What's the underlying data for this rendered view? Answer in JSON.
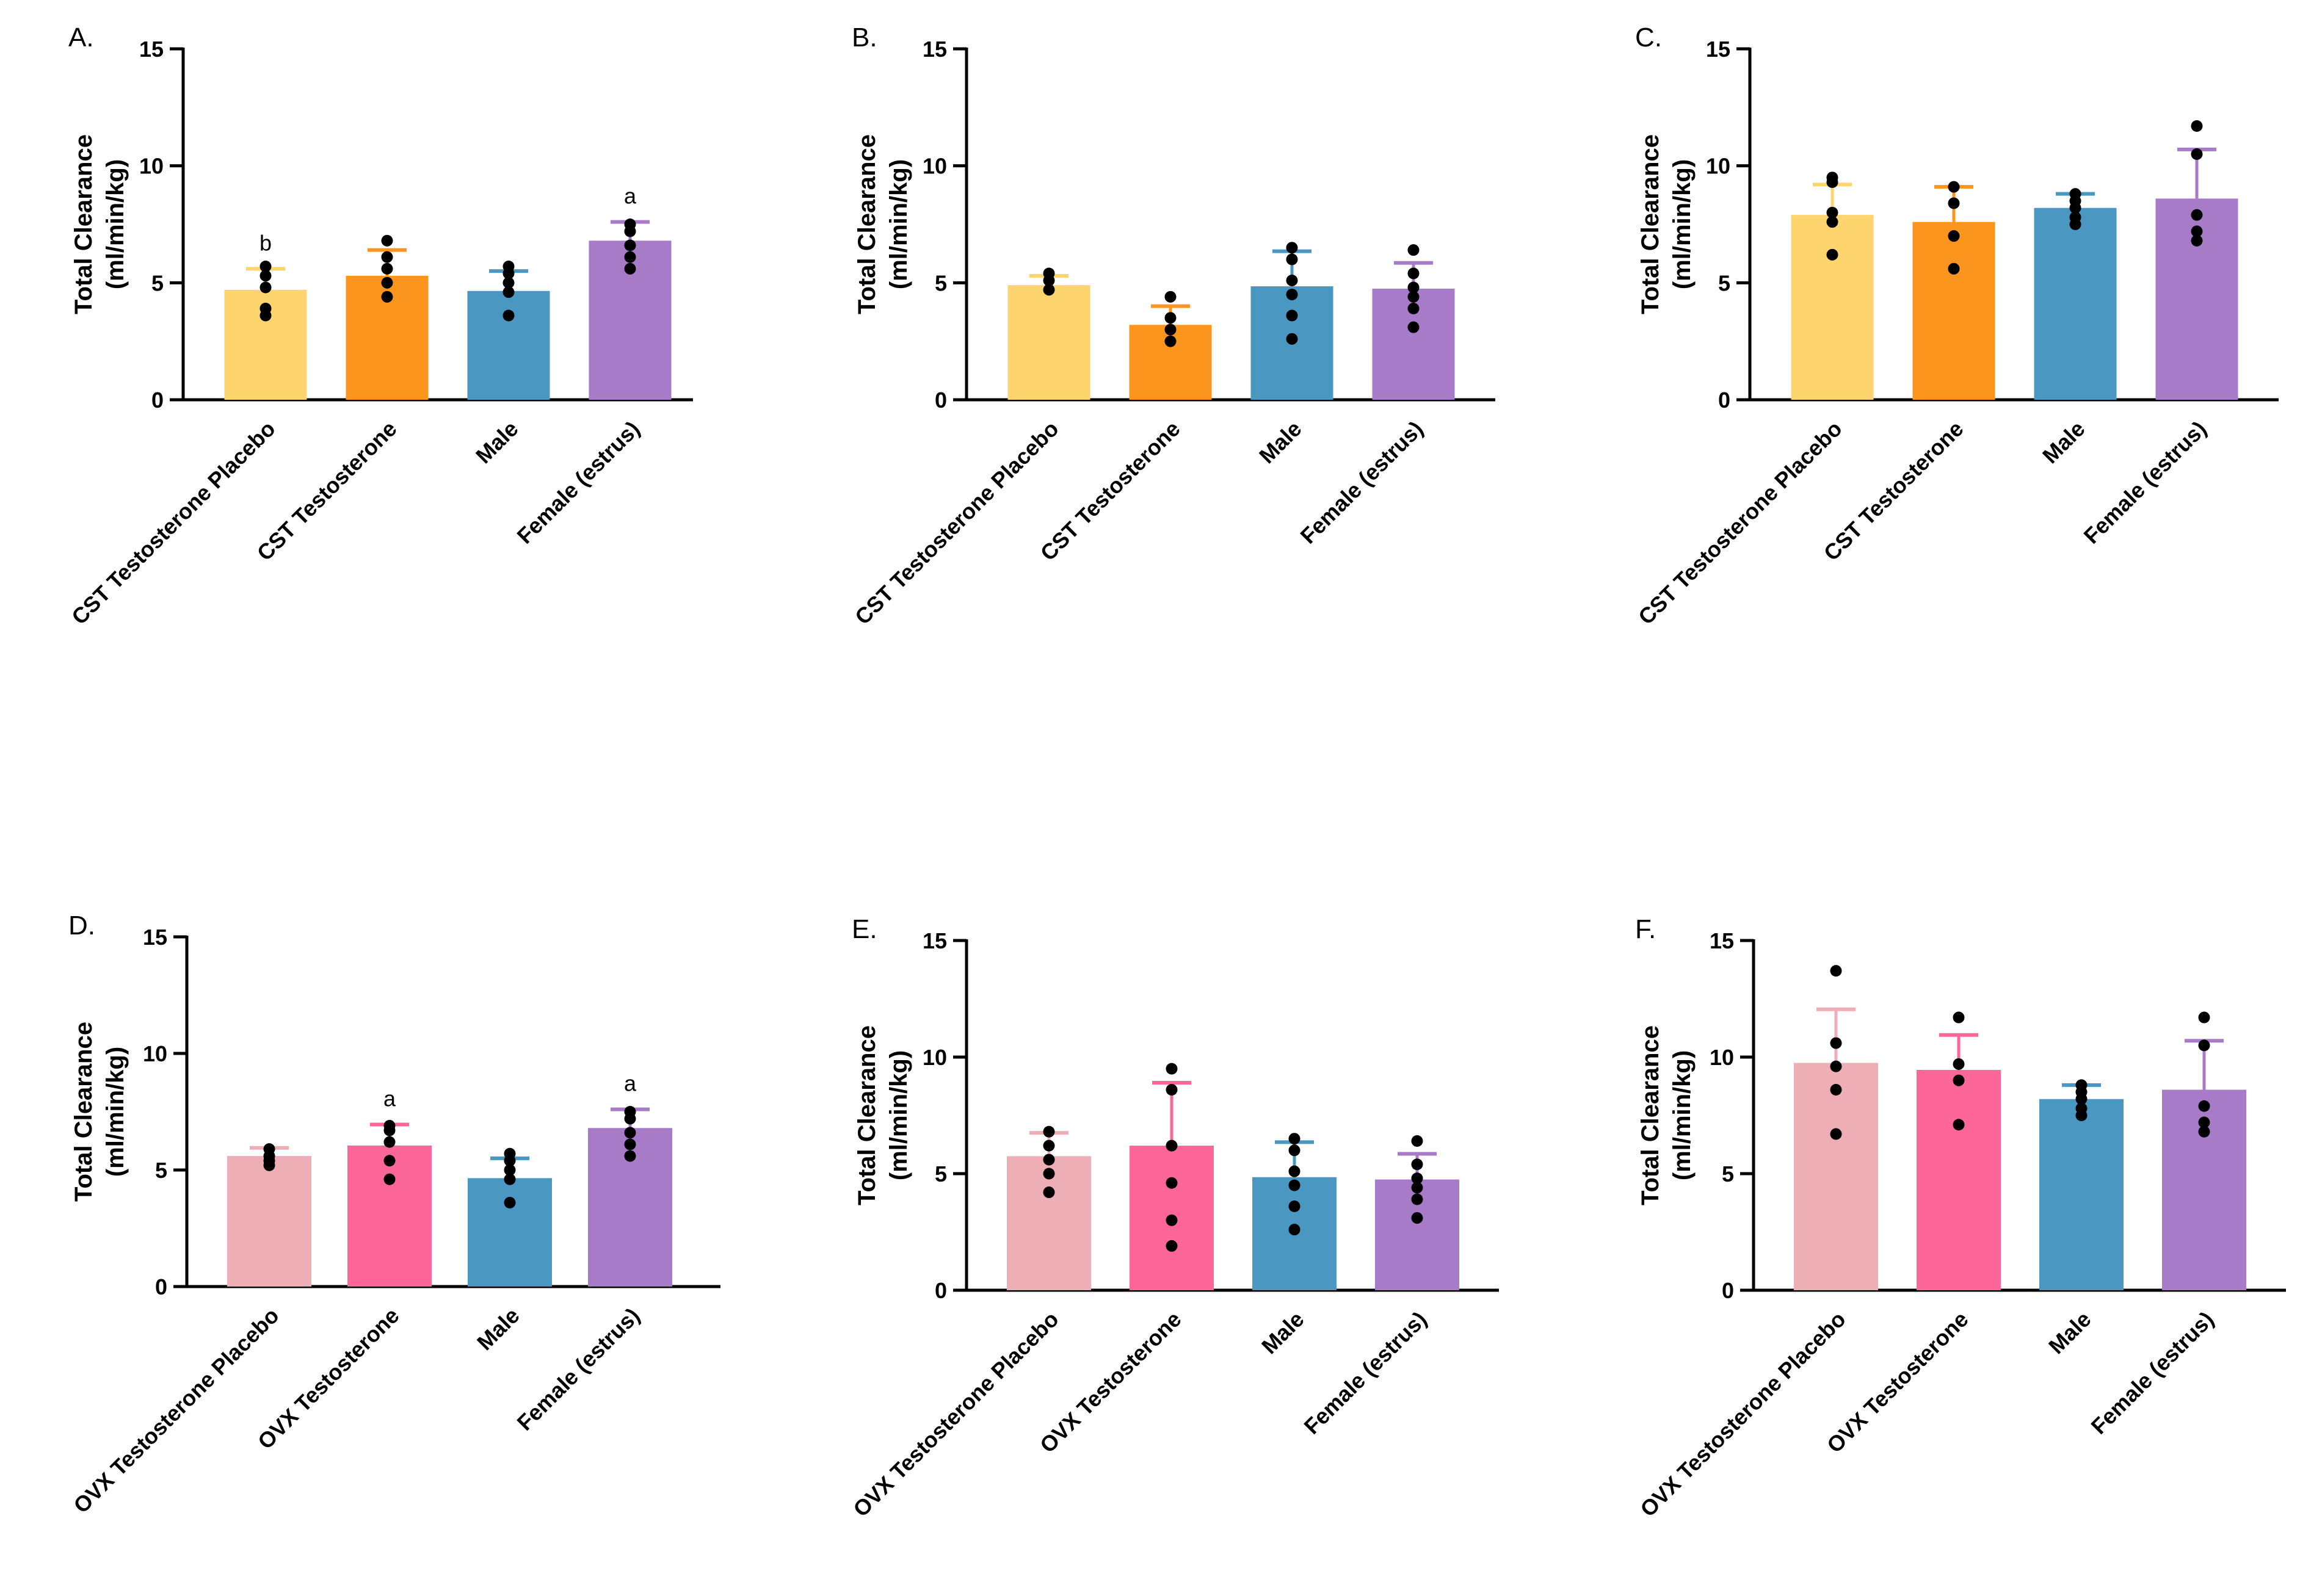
{
  "chart_data": [
    {
      "type": "bar",
      "panel_label": "A.",
      "ylabel_lines": [
        "Total Clearance",
        "(ml/min/kg)"
      ],
      "ylim": [
        0,
        15
      ],
      "yticks": [
        0,
        5,
        10,
        15
      ],
      "categories": [
        "CST Testosterone Placebo",
        "CST Testosterone",
        "Male",
        "Female (estrus)"
      ],
      "colors": [
        "#FDD46E",
        "#FB951D",
        "#4A97C2",
        "#A87BC9"
      ],
      "values": [
        4.7,
        5.3,
        4.65,
        6.8
      ],
      "errors": [
        0.9,
        1.1,
        0.85,
        0.8
      ],
      "points": [
        [
          5.7,
          5.3,
          4.8,
          3.9,
          3.6
        ],
        [
          6.8,
          6.1,
          5.6,
          5.0,
          4.4
        ],
        [
          5.7,
          5.4,
          5.0,
          4.6,
          3.6
        ],
        [
          7.5,
          7.2,
          6.6,
          6.1,
          5.6
        ]
      ],
      "annotations": [
        "b",
        "",
        "",
        "a"
      ],
      "grid": false
    },
    {
      "type": "bar",
      "panel_label": "B.",
      "ylabel_lines": [
        "Total Clearance",
        "(ml/min/kg)"
      ],
      "ylim": [
        0,
        15
      ],
      "yticks": [
        0,
        5,
        10,
        15
      ],
      "categories": [
        "CST Testosterone Placebo",
        "CST Testosterone",
        "Male",
        "Female (estrus)"
      ],
      "colors": [
        "#FDD46E",
        "#FB951D",
        "#4A97C2",
        "#A87BC9"
      ],
      "values": [
        4.9,
        3.2,
        4.85,
        4.75
      ],
      "errors": [
        0.4,
        0.8,
        1.5,
        1.1
      ],
      "points": [
        [
          5.4,
          5.1,
          4.7
        ],
        [
          4.4,
          3.5,
          3.0,
          2.5
        ],
        [
          6.5,
          6.0,
          5.1,
          4.5,
          3.6,
          2.6
        ],
        [
          6.4,
          5.4,
          4.8,
          4.4,
          3.9,
          3.1
        ]
      ],
      "annotations": [
        "",
        "",
        "",
        ""
      ],
      "grid": false
    },
    {
      "type": "bar",
      "panel_label": "C.",
      "ylabel_lines": [
        "Total Clearance",
        "(ml/min/kg)"
      ],
      "ylim": [
        0,
        15
      ],
      "yticks": [
        0,
        5,
        10,
        15
      ],
      "categories": [
        "CST Testosterone Placebo",
        "CST Testosterone",
        "Male",
        "Female (estrus)"
      ],
      "colors": [
        "#FDD46E",
        "#FB951D",
        "#4A97C2",
        "#A87BC9"
      ],
      "values": [
        7.9,
        7.6,
        8.2,
        8.6
      ],
      "errors": [
        1.3,
        1.5,
        0.6,
        2.1
      ],
      "points": [
        [
          9.5,
          9.3,
          8.0,
          7.6,
          6.2
        ],
        [
          9.1,
          8.4,
          7.0,
          5.6
        ],
        [
          8.8,
          8.5,
          8.2,
          7.8,
          7.5
        ],
        [
          11.7,
          10.5,
          7.9,
          7.2,
          6.8
        ]
      ],
      "annotations": [
        "",
        "",
        "",
        ""
      ],
      "grid": false
    },
    {
      "type": "bar",
      "panel_label": "D.",
      "ylabel_lines": [
        "Total Clearance",
        "(ml/min/kg)"
      ],
      "ylim": [
        0,
        15
      ],
      "yticks": [
        0,
        5,
        10,
        15
      ],
      "categories": [
        "OVX Testosterone Placebo",
        "OVX Testosterone",
        "Male",
        "Female (estrus)"
      ],
      "colors": [
        "#EDAEB6",
        "#FD6699",
        "#4A97C2",
        "#A87BC9"
      ],
      "values": [
        5.6,
        6.05,
        4.65,
        6.8
      ],
      "errors": [
        0.35,
        0.9,
        0.85,
        0.8
      ],
      "points": [
        [
          5.9,
          5.6,
          5.4,
          5.2
        ],
        [
          6.9,
          6.7,
          6.2,
          5.4,
          4.6
        ],
        [
          5.7,
          5.4,
          5.0,
          4.6,
          3.6
        ],
        [
          7.5,
          7.2,
          6.6,
          6.1,
          5.6
        ]
      ],
      "annotations": [
        "",
        "a",
        "",
        "a"
      ],
      "grid": false
    },
    {
      "type": "bar",
      "panel_label": "E.",
      "ylabel_lines": [
        "Total Clearance",
        "(ml/min/kg)"
      ],
      "ylim": [
        0,
        15
      ],
      "yticks": [
        0,
        5,
        10,
        15
      ],
      "categories": [
        "OVX Testosterone Placebo",
        "OVX Testosterone",
        "Male",
        "Female (estrus)"
      ],
      "colors": [
        "#EDAEB6",
        "#FD6699",
        "#4A97C2",
        "#A87BC9"
      ],
      "values": [
        5.75,
        6.2,
        4.85,
        4.75
      ],
      "errors": [
        1.0,
        2.7,
        1.5,
        1.1
      ],
      "points": [
        [
          6.8,
          6.2,
          5.6,
          5.0,
          4.2
        ],
        [
          9.5,
          8.6,
          6.2,
          4.6,
          3.0,
          1.9
        ],
        [
          6.5,
          6.0,
          5.1,
          4.5,
          3.6,
          2.6
        ],
        [
          6.4,
          5.4,
          4.8,
          4.4,
          3.9,
          3.1
        ]
      ],
      "annotations": [
        "",
        "",
        "",
        ""
      ],
      "grid": false
    },
    {
      "type": "bar",
      "panel_label": "F.",
      "ylabel_lines": [
        "Total Clearance",
        "(ml/min/kg)"
      ],
      "ylim": [
        0,
        15
      ],
      "yticks": [
        0,
        5,
        10,
        15
      ],
      "categories": [
        "OVX Testosterone Placebo",
        "OVX Testosterone",
        "Male",
        "Female (estrus)"
      ],
      "colors": [
        "#EDAEB6",
        "#FD6699",
        "#4A97C2",
        "#A87BC9"
      ],
      "values": [
        9.75,
        9.45,
        8.2,
        8.6
      ],
      "errors": [
        2.3,
        1.5,
        0.6,
        2.1
      ],
      "points": [
        [
          13.7,
          10.6,
          9.6,
          8.6,
          6.7
        ],
        [
          11.7,
          9.7,
          9.0,
          7.1
        ],
        [
          8.8,
          8.5,
          8.2,
          7.8,
          7.5
        ],
        [
          11.7,
          10.5,
          7.9,
          7.2,
          6.8
        ]
      ],
      "annotations": [
        "",
        "",
        "",
        ""
      ],
      "grid": false
    }
  ]
}
